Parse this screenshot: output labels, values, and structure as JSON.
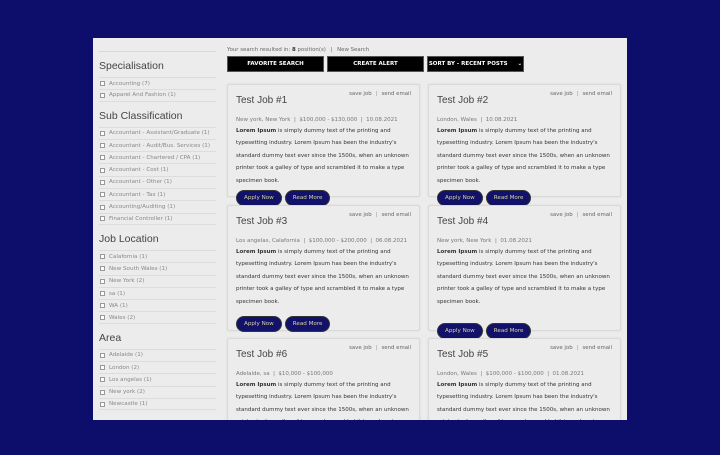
{
  "sidebar": {
    "sections": [
      {
        "title": "Specialisation",
        "items": [
          "Accounting (7)",
          "Apparel And Fashion (1)"
        ]
      },
      {
        "title": "Sub Classification",
        "items": [
          "Accountant - Assistant/Graduate (1)",
          "Accountant - Audit/Bus. Services (1)",
          "Accountant - Chartered / CPA (1)",
          "Accountant - Cost (1)",
          "Accountant - Other (1)",
          "Accountant - Tax (1)",
          "Accounting/Auditing (1)",
          "Financial Controller (1)"
        ]
      },
      {
        "title": "Job Location",
        "items": [
          "Calafornia (1)",
          "New South Wales (1)",
          "New York (2)",
          "sa (1)",
          "WA (1)",
          "Wales (2)"
        ]
      },
      {
        "title": "Area",
        "items": [
          "Adelaide (1)",
          "London (2)",
          "Los angelas (1)",
          "New york (2)",
          "Newcastle (1)"
        ]
      }
    ]
  },
  "results": {
    "prefix": "Your search resulted in:",
    "count": "8",
    "suffix": "position(s)",
    "sep": "|",
    "new_search": "New Search"
  },
  "toolbar": {
    "favorite": "FAVORITE SEARCH",
    "alert": "CREATE ALERT",
    "sort": "SORT BY - RECENT POSTS"
  },
  "card_actions": {
    "save": "save job",
    "sep": "|",
    "email": "send email",
    "apply": "Apply Now",
    "read": "Read More"
  },
  "desc": {
    "bold": "Lorem Ipsum",
    "rest": " is simply dummy text of the printing and typesetting industry. Lorem Ipsum has been the industry's standard dummy text ever since the 1500s, when an unknown printer took a galley of type and scrambled it to make a type specimen book."
  },
  "jobs": [
    {
      "title": "Test Job #1",
      "meta": "New york, New York  |  $100,000 - $130,000  |  10.08.2021"
    },
    {
      "title": "Test Job #2",
      "meta": "London, Wales  |  10.08.2021"
    },
    {
      "title": "Test Job #3",
      "meta": "Los angelas, Calafornia  |  $100,000 - $200,000  |  06.08.2021"
    },
    {
      "title": "Test Job #4",
      "meta": "New york, New York  |  01.08.2021"
    },
    {
      "title": "Test Job #6",
      "meta": "Adelaide, sa  |  $10,000 - $100,000"
    },
    {
      "title": "Test Job #5",
      "meta": "London, Wales  |  $100,000 - $100,000  |  01.08.2021"
    }
  ],
  "colors": {
    "background": "#0d0d6b",
    "button": "#12126a",
    "button_text": "#d8d49a"
  }
}
